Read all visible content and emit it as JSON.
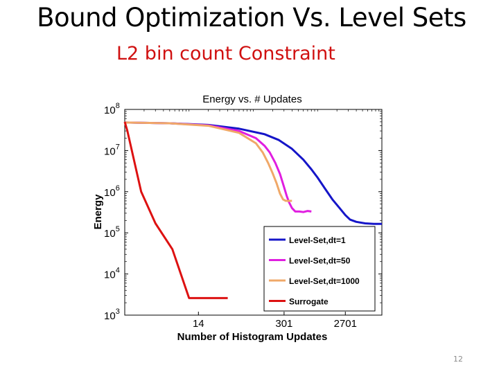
{
  "slide": {
    "title": "Bound Optimization Vs. Level Sets",
    "subtitle": "L2 bin count Constraint",
    "page_number": "12"
  },
  "colors": {
    "subtitle": "#d01010",
    "level_set_dt1": "#1515c8",
    "level_set_dt50": "#e01ee0",
    "level_set_dt1000": "#f0a868",
    "surrogate": "#dd1111"
  },
  "chart_data": {
    "type": "line",
    "title": "Energy vs. # Updates",
    "xlabel": "Number of Histogram Updates",
    "ylabel": "Energy",
    "x_scale": "log",
    "y_scale": "log",
    "xlim": [
      1,
      10000
    ],
    "ylim": [
      1000,
      100000000
    ],
    "x_ticks": [
      {
        "value": 14,
        "label": "14"
      },
      {
        "value": 301,
        "label": "301"
      },
      {
        "value": 2701,
        "label": "2701"
      }
    ],
    "y_ticks": [
      {
        "value": 1000,
        "base": "10",
        "exp": "3"
      },
      {
        "value": 10000,
        "base": "10",
        "exp": "4"
      },
      {
        "value": 100000,
        "base": "10",
        "exp": "5"
      },
      {
        "value": 1000000,
        "base": "10",
        "exp": "6"
      },
      {
        "value": 10000000,
        "base": "10",
        "exp": "7"
      },
      {
        "value": 100000000,
        "base": "10",
        "exp": "8"
      }
    ],
    "legend_position": "bottom-right",
    "grid": false,
    "series": [
      {
        "name": "Level-Set,dt=1",
        "color": "#1515c8",
        "x": [
          1,
          5,
          20,
          60,
          150,
          250,
          400,
          600,
          800,
          1000,
          1300,
          1700,
          2200,
          2700,
          3200,
          4000,
          5500,
          7500,
          10000
        ],
        "y": [
          48000000,
          46000000,
          42000000,
          34000000,
          25000000,
          18000000,
          11000000,
          6000000,
          3500000,
          2200000,
          1200000,
          650000,
          400000,
          270000,
          210000,
          185000,
          170000,
          165000,
          165000
        ]
      },
      {
        "name": "Level-Set,dt=50",
        "color": "#e01ee0",
        "x": [
          1,
          5,
          20,
          60,
          110,
          150,
          180,
          220,
          260,
          300,
          330,
          360,
          400,
          450,
          520,
          600,
          700,
          800
        ],
        "y": [
          48000000,
          46000000,
          41000000,
          30000000,
          20000000,
          13000000,
          9000000,
          5000000,
          2700000,
          1300000,
          800000,
          550000,
          400000,
          330000,
          330000,
          320000,
          340000,
          330000
        ]
      },
      {
        "name": "Level-Set,dt=1000",
        "color": "#f0a868",
        "x": [
          1,
          5,
          20,
          60,
          110,
          140,
          170,
          200,
          230,
          260,
          290,
          320,
          350,
          400
        ],
        "y": [
          48000000,
          46000000,
          40000000,
          27000000,
          15000000,
          9000000,
          5000000,
          2800000,
          1600000,
          900000,
          650000,
          600000,
          600000,
          600000
        ]
      },
      {
        "name": "Surrogate",
        "color": "#dd1111",
        "x": [
          1,
          1.1,
          1.8,
          3,
          5.5,
          10,
          20,
          40
        ],
        "y": [
          50000000,
          30000000,
          1000000,
          170000,
          40000,
          2600,
          2600,
          2600
        ]
      }
    ]
  }
}
